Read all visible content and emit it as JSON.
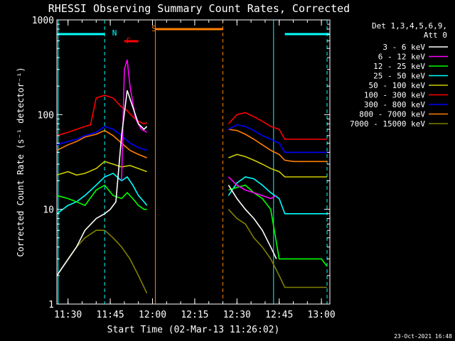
{
  "chart_data": {
    "type": "line",
    "title": "RHESSI Observing Summary Count Rates, Corrected",
    "xlabel": "Start Time (02-Mar-13 11:26:02)",
    "ylabel": "Corrected Count Rate (s⁻¹ detector⁻¹)",
    "xlim": [
      "11:26:02",
      "13:03"
    ],
    "ylim": [
      1,
      1000
    ],
    "yscale": "log",
    "xticks": [
      "11:30",
      "11:45",
      "12:00",
      "12:15",
      "12:30",
      "12:45",
      "13:00"
    ],
    "yticks": [
      "1",
      "10",
      "100",
      "1000"
    ],
    "legend": {
      "placement": "right",
      "header": [
        "Det 1,3,4,5,6,9,",
        "Att 0"
      ],
      "entries": [
        {
          "label": "3 - 6 keV",
          "color": "#ffffff"
        },
        {
          "label": "6 - 12 keV",
          "color": "#ff00ff"
        },
        {
          "label": "12 - 25 keV",
          "color": "#00ff00"
        },
        {
          "label": "25 - 50 keV",
          "color": "#00ffff"
        },
        {
          "label": "50 - 100 keV",
          "color": "#cccc00"
        },
        {
          "label": "100 - 300 keV",
          "color": "#ff0000"
        },
        {
          "label": "300 - 800 keV",
          "color": "#0000ff"
        },
        {
          "label": "800 - 7000 keV",
          "color": "#ff8000"
        },
        {
          "label": "7000 - 15000 keV",
          "color": "#808000"
        }
      ]
    },
    "annotations": [
      {
        "label": "N",
        "time": "11:46",
        "color": "#00ffff"
      },
      {
        "label": "F",
        "time": "11:51",
        "color": "#ff0000"
      },
      {
        "label": "S",
        "time": "12:00",
        "color": "#ff8000"
      }
    ],
    "bars": [
      {
        "type": "N",
        "color": "#00ffff",
        "segments": [
          [
            "11:26:02",
            "11:43"
          ],
          [
            "12:47",
            "13:03"
          ]
        ]
      },
      {
        "type": "F",
        "color": "#ff0000",
        "segments": [
          [
            "11:50",
            "11:55"
          ]
        ]
      },
      {
        "type": "S",
        "color": "#ff8000",
        "segments": [
          [
            "12:01",
            "12:25"
          ]
        ]
      }
    ],
    "vlines": [
      {
        "time": "11:26:30",
        "color": "#00ffff",
        "style": "solid"
      },
      {
        "time": "11:43",
        "color": "#00ffff",
        "style": "dashed"
      },
      {
        "time": "12:01",
        "color": "#ff8000",
        "style": "solid"
      },
      {
        "time": "12:25",
        "color": "#ff8000",
        "style": "dashed"
      },
      {
        "time": "12:43",
        "color": "#00ffff",
        "style": "solid"
      },
      {
        "time": "13:02",
        "color": "#00ffff",
        "style": "dashed"
      }
    ],
    "series": [
      {
        "name": "3 - 6 keV",
        "color": "#ffffff",
        "points": [
          [
            "11:26:02",
            2
          ],
          [
            "11:33",
            4
          ],
          [
            "11:36",
            6
          ],
          [
            "11:40",
            8
          ],
          [
            "11:43",
            9
          ],
          [
            "11:45",
            10
          ],
          [
            "11:47",
            12
          ],
          [
            "11:49",
            60
          ],
          [
            "11:51",
            180
          ],
          [
            "11:53",
            120
          ],
          [
            "11:55",
            80
          ],
          [
            "11:57",
            70
          ],
          [
            "11:58",
            75
          ],
          [
            "12:27",
            18
          ],
          [
            "12:30",
            13
          ],
          [
            "12:33",
            10
          ],
          [
            "12:36",
            8
          ],
          [
            "12:39",
            6
          ],
          [
            "12:42",
            4
          ],
          [
            "12:44",
            3
          ]
        ]
      },
      {
        "name": "6 - 12 keV",
        "color": "#ff00ff",
        "points": [
          [
            "11:49",
            20
          ],
          [
            "11:50",
            300
          ],
          [
            "11:51",
            380
          ],
          [
            "11:52",
            200
          ],
          [
            "11:54",
            90
          ],
          [
            "11:56",
            70
          ],
          [
            "11:58",
            65
          ],
          [
            "12:27",
            22
          ],
          [
            "12:30",
            18
          ],
          [
            "12:33",
            16
          ],
          [
            "12:36",
            15
          ],
          [
            "12:39",
            14
          ],
          [
            "12:42",
            13
          ],
          [
            "12:44",
            14
          ]
        ]
      },
      {
        "name": "12 - 25 keV",
        "color": "#00ff00",
        "points": [
          [
            "11:26:02",
            14
          ],
          [
            "11:30",
            13
          ],
          [
            "11:33",
            12
          ],
          [
            "11:36",
            11
          ],
          [
            "11:40",
            16
          ],
          [
            "11:43",
            18
          ],
          [
            "11:46",
            14
          ],
          [
            "11:49",
            13
          ],
          [
            "11:51",
            15
          ],
          [
            "11:53",
            13
          ],
          [
            "11:55",
            11
          ],
          [
            "11:57",
            10
          ],
          [
            "11:58",
            10
          ],
          [
            "12:27",
            16
          ],
          [
            "12:30",
            17
          ],
          [
            "12:33",
            18
          ],
          [
            "12:36",
            15
          ],
          [
            "12:39",
            13
          ],
          [
            "12:42",
            10
          ],
          [
            "12:45",
            3
          ],
          [
            "12:50",
            3
          ],
          [
            "13:00",
            3
          ],
          [
            "13:02",
            2.5
          ]
        ]
      },
      {
        "name": "25 - 50 keV",
        "color": "#00ffff",
        "points": [
          [
            "11:26:02",
            9
          ],
          [
            "11:30",
            11
          ],
          [
            "11:33",
            12
          ],
          [
            "11:36",
            14
          ],
          [
            "11:40",
            18
          ],
          [
            "11:43",
            22
          ],
          [
            "11:46",
            24
          ],
          [
            "11:49",
            20
          ],
          [
            "11:51",
            22
          ],
          [
            "11:53",
            18
          ],
          [
            "11:55",
            14
          ],
          [
            "11:57",
            12
          ],
          [
            "11:58",
            11
          ],
          [
            "12:27",
            14
          ],
          [
            "12:30",
            19
          ],
          [
            "12:33",
            22
          ],
          [
            "12:36",
            21
          ],
          [
            "12:39",
            18
          ],
          [
            "12:42",
            15
          ],
          [
            "12:45",
            13
          ],
          [
            "12:47",
            9
          ],
          [
            "12:50",
            9
          ],
          [
            "13:00",
            9
          ],
          [
            "13:02",
            9
          ]
        ]
      },
      {
        "name": "50 - 100 keV",
        "color": "#cccc00",
        "points": [
          [
            "11:26:02",
            23
          ],
          [
            "11:30",
            25
          ],
          [
            "11:33",
            23
          ],
          [
            "11:36",
            24
          ],
          [
            "11:40",
            27
          ],
          [
            "11:43",
            32
          ],
          [
            "11:46",
            30
          ],
          [
            "11:49",
            28
          ],
          [
            "11:52",
            29
          ],
          [
            "11:55",
            27
          ],
          [
            "11:58",
            25
          ],
          [
            "12:27",
            35
          ],
          [
            "12:30",
            38
          ],
          [
            "12:33",
            36
          ],
          [
            "12:36",
            33
          ],
          [
            "12:39",
            30
          ],
          [
            "12:42",
            27
          ],
          [
            "12:45",
            25
          ],
          [
            "12:47",
            22
          ],
          [
            "12:50",
            22
          ],
          [
            "13:00",
            22
          ],
          [
            "13:02",
            22
          ]
        ]
      },
      {
        "name": "100 - 300 keV",
        "color": "#ff0000",
        "points": [
          [
            "11:26:02",
            60
          ],
          [
            "11:30",
            65
          ],
          [
            "11:33",
            70
          ],
          [
            "11:36",
            75
          ],
          [
            "11:38",
            78
          ],
          [
            "11:40",
            150
          ],
          [
            "11:43",
            160
          ],
          [
            "11:46",
            150
          ],
          [
            "11:49",
            120
          ],
          [
            "11:51",
            110
          ],
          [
            "11:53",
            95
          ],
          [
            "11:55",
            85
          ],
          [
            "11:57",
            80
          ],
          [
            "11:58",
            82
          ],
          [
            "12:27",
            80
          ],
          [
            "12:30",
            100
          ],
          [
            "12:33",
            105
          ],
          [
            "12:36",
            95
          ],
          [
            "12:39",
            85
          ],
          [
            "12:42",
            75
          ],
          [
            "12:45",
            70
          ],
          [
            "12:47",
            55
          ],
          [
            "12:50",
            55
          ],
          [
            "13:00",
            55
          ],
          [
            "13:02",
            55
          ]
        ]
      },
      {
        "name": "300 - 800 keV",
        "color": "#0000ff",
        "points": [
          [
            "11:26:02",
            48
          ],
          [
            "11:30",
            52
          ],
          [
            "11:33",
            55
          ],
          [
            "11:36",
            60
          ],
          [
            "11:40",
            65
          ],
          [
            "11:43",
            75
          ],
          [
            "11:46",
            70
          ],
          [
            "11:49",
            60
          ],
          [
            "11:52",
            50
          ],
          [
            "11:55",
            45
          ],
          [
            "11:58",
            42
          ],
          [
            "12:27",
            70
          ],
          [
            "12:30",
            78
          ],
          [
            "12:33",
            75
          ],
          [
            "12:36",
            68
          ],
          [
            "12:39",
            60
          ],
          [
            "12:42",
            55
          ],
          [
            "12:45",
            50
          ],
          [
            "12:47",
            40
          ],
          [
            "12:50",
            40
          ],
          [
            "13:00",
            40
          ],
          [
            "13:02",
            40
          ]
        ]
      },
      {
        "name": "800 - 7000 keV",
        "color": "#ff8000",
        "points": [
          [
            "11:26:02",
            42
          ],
          [
            "11:30",
            48
          ],
          [
            "11:33",
            52
          ],
          [
            "11:36",
            58
          ],
          [
            "11:40",
            62
          ],
          [
            "11:43",
            68
          ],
          [
            "11:46",
            60
          ],
          [
            "11:49",
            50
          ],
          [
            "11:52",
            42
          ],
          [
            "11:55",
            38
          ],
          [
            "11:58",
            35
          ],
          [
            "12:27",
            70
          ],
          [
            "12:30",
            68
          ],
          [
            "12:33",
            62
          ],
          [
            "12:36",
            55
          ],
          [
            "12:39",
            48
          ],
          [
            "12:42",
            42
          ],
          [
            "12:45",
            38
          ],
          [
            "12:47",
            33
          ],
          [
            "12:50",
            32
          ],
          [
            "13:00",
            32
          ],
          [
            "13:02",
            32
          ]
        ]
      },
      {
        "name": "7000 - 15000 keV",
        "color": "#808000",
        "points": [
          [
            "11:26:02",
            2
          ],
          [
            "11:30",
            3
          ],
          [
            "11:33",
            4
          ],
          [
            "11:36",
            5
          ],
          [
            "11:40",
            6
          ],
          [
            "11:43",
            6
          ],
          [
            "11:46",
            5
          ],
          [
            "11:49",
            4
          ],
          [
            "11:52",
            3
          ],
          [
            "11:55",
            2
          ],
          [
            "11:58",
            1.3
          ],
          [
            "12:27",
            10
          ],
          [
            "12:30",
            8
          ],
          [
            "12:33",
            7
          ],
          [
            "12:36",
            5
          ],
          [
            "12:39",
            4
          ],
          [
            "12:42",
            3
          ],
          [
            "12:45",
            2
          ],
          [
            "12:47",
            1.5
          ],
          [
            "12:50",
            1.5
          ],
          [
            "13:00",
            1.5
          ],
          [
            "13:02",
            1.5
          ]
        ]
      }
    ]
  },
  "footer_timestamp": "23-Oct-2021 16:48"
}
